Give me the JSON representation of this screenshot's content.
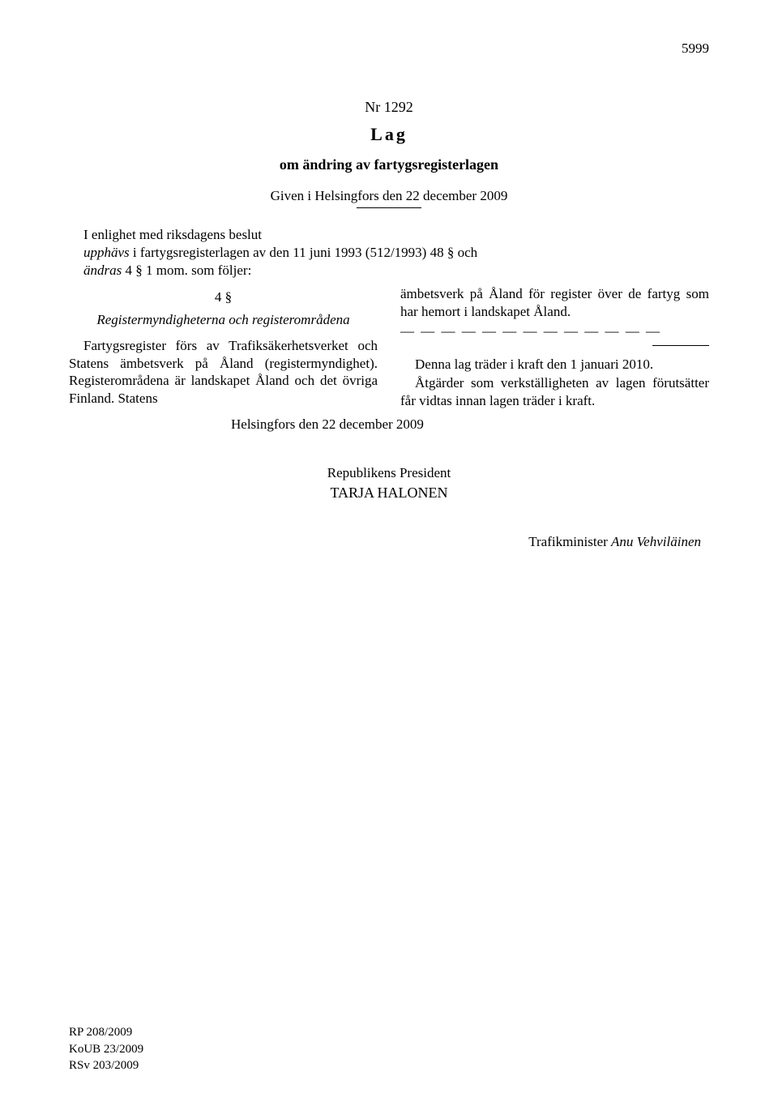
{
  "page_number": "5999",
  "header": {
    "nr": "Nr 1292",
    "lag": "Lag",
    "subtitle": "om ändring av fartygsregisterlagen",
    "given": "Given i Helsingfors den 22 december 2009"
  },
  "intro": {
    "line1": "I enlighet med riksdagens beslut",
    "line2_part1": "upphävs",
    "line2_part2": " i fartygsregisterlagen av den 11 juni 1993 (512/1993) 48 § och",
    "line3_part1": "ändras",
    "line3_part2": " 4 § 1 mom. som följer:"
  },
  "left_col": {
    "section_num": "4 §",
    "section_title": "Registermyndigheterna och registerområdena",
    "para": "Fartygsregister förs av Trafiksäkerhetsverket och Statens ämbetsverk på Åland (registermyndighet). Registerområdena är landskapet Åland och det övriga Finland. Statens"
  },
  "right_col": {
    "para1": "ämbetsverk på Åland för register över de fartyg som har hemort i landskapet Åland.",
    "dashes": "— — — — — — — — — — — — —",
    "para2": "Denna lag träder i kraft den 1 januari 2010.",
    "para3": "Åtgärder som verkställigheten av lagen förutsätter får vidtas innan lagen träder i kraft."
  },
  "signatures": {
    "location": "Helsingfors den 22 december 2009",
    "title": "Republikens President",
    "name": "TARJA HALONEN",
    "minister_label": "Trafikminister ",
    "minister_name": "Anu Vehviläinen"
  },
  "footer": {
    "ref1": "RP 208/2009",
    "ref2": "KoUB 23/2009",
    "ref3": "RSv 203/2009"
  }
}
